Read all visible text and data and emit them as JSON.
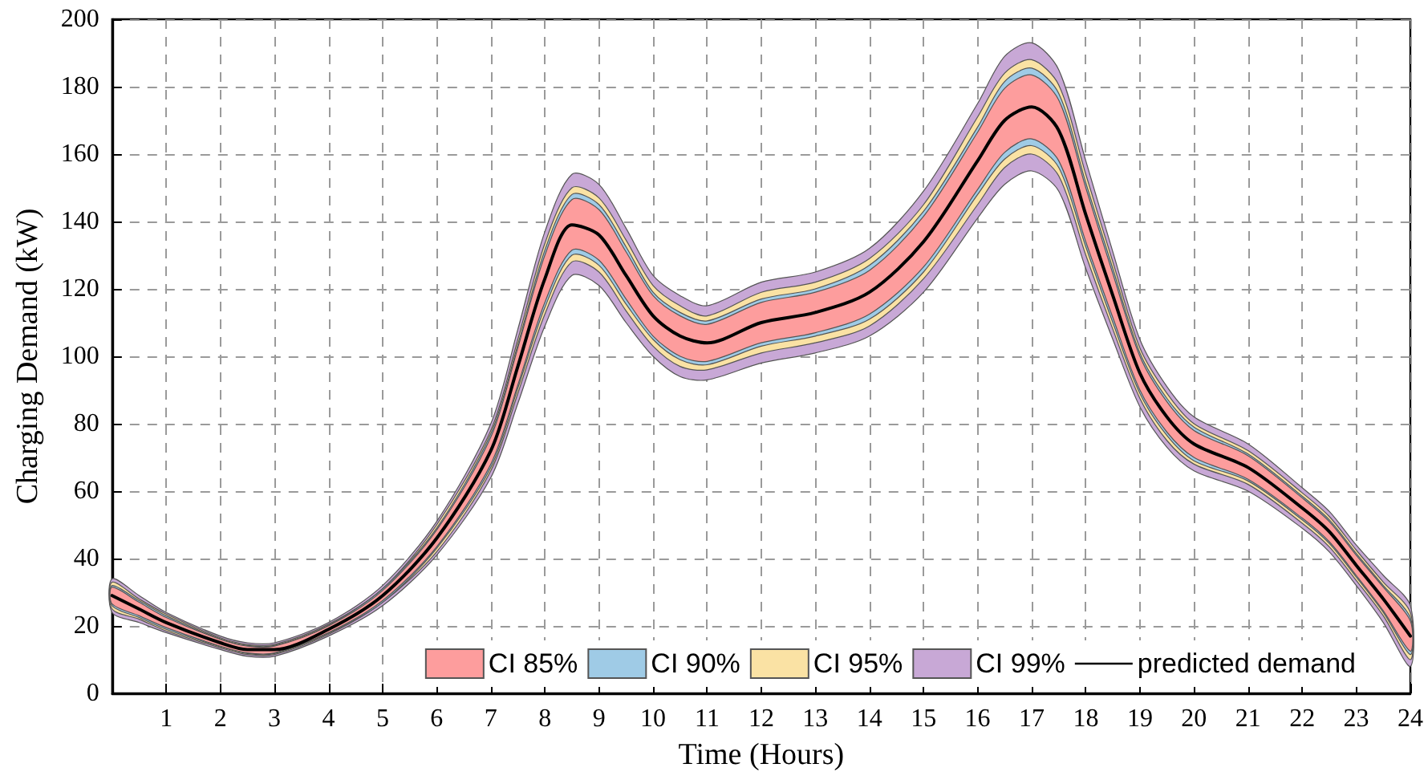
{
  "chart_data": {
    "type": "line",
    "xlabel": "Time (Hours)",
    "ylabel": "Charging Demand (kW)",
    "x": [
      0,
      0.5,
      1,
      2,
      2.5,
      3,
      4,
      5,
      6,
      7,
      7.5,
      8,
      8.5,
      9,
      9.5,
      10,
      10.5,
      11,
      12,
      13,
      14,
      15,
      16,
      16.5,
      17,
      17.5,
      18,
      18.5,
      19,
      19.5,
      20,
      21,
      22,
      22.5,
      23,
      23.5,
      24
    ],
    "xlim": [
      0,
      24
    ],
    "xticks": [
      1,
      2,
      3,
      4,
      5,
      6,
      7,
      8,
      9,
      10,
      11,
      12,
      13,
      14,
      15,
      16,
      17,
      18,
      19,
      20,
      21,
      22,
      23,
      24
    ],
    "ylim": [
      0,
      200
    ],
    "yticks": [
      0,
      20,
      40,
      60,
      80,
      100,
      120,
      140,
      160,
      180,
      200
    ],
    "grid": true,
    "legend": "bottom right",
    "marker": "none",
    "series": [
      {
        "name": "CI 85%",
        "color": "#fd9d9d",
        "values": [
          null,
          null,
          null,
          null,
          null,
          null,
          null,
          null,
          null,
          null,
          null,
          null,
          null,
          null,
          null,
          null,
          null,
          null,
          null,
          null,
          null,
          null,
          null,
          null,
          null,
          null,
          null,
          null,
          null,
          null,
          null,
          null,
          null,
          null,
          null,
          null,
          null
        ],
        "lower": [
          26.5,
          23,
          19.5,
          14,
          12,
          12,
          18,
          27.5,
          43.5,
          68,
          91.5,
          116,
          131.5,
          128.5,
          117,
          106,
          100,
          98.5,
          104,
          107,
          112.5,
          126.5,
          149.5,
          160.5,
          164.5,
          158,
          134,
          111.5,
          90,
          77.5,
          70,
          63.5,
          52,
          45,
          35,
          24.5,
          12.5
        ],
        "upper": [
          31.5,
          27,
          22.5,
          16,
          14,
          14,
          20,
          30.5,
          48.5,
          76,
          102.5,
          130,
          146.5,
          143.5,
          131,
          118,
          112,
          109.5,
          116,
          119,
          125.5,
          141.5,
          166.5,
          179.5,
          183.5,
          176,
          150,
          124.5,
          100,
          86.5,
          78,
          70.5,
          58,
          51,
          41,
          31.5,
          21.5
        ]
      },
      {
        "name": "CI 90%",
        "color": "#9fcbe6",
        "values": [
          null,
          null,
          null,
          null,
          null,
          null,
          null,
          null,
          null,
          null,
          null,
          null,
          null,
          null,
          null,
          null,
          null,
          null,
          null,
          null,
          null,
          null,
          null,
          null,
          null,
          null,
          null,
          null,
          null,
          null,
          null,
          null,
          null,
          null,
          null,
          null,
          null
        ],
        "lower": [
          26,
          22.5,
          19,
          13.8,
          11.8,
          11.8,
          17.8,
          27,
          43,
          67,
          90.5,
          114.5,
          130,
          127,
          115.5,
          105,
          99,
          97.5,
          103,
          106,
          111,
          125,
          148,
          158.5,
          162.5,
          156,
          132.5,
          110,
          89,
          76.5,
          69,
          63,
          51.5,
          44.5,
          34.5,
          24,
          11.5
        ],
        "upper": [
          32,
          27.5,
          23,
          16.2,
          14.2,
          14.2,
          20.2,
          31,
          49,
          77,
          103.5,
          131.5,
          148,
          145,
          132.5,
          119,
          113,
          110.5,
          117,
          120,
          127,
          143,
          168,
          181.5,
          185.5,
          178,
          151.5,
          126,
          101,
          87.5,
          79,
          71,
          58.5,
          51.5,
          41.5,
          32,
          22.5
        ]
      },
      {
        "name": "CI 95%",
        "color": "#fae2a4",
        "values": [
          null,
          null,
          null,
          null,
          null,
          null,
          null,
          null,
          null,
          null,
          null,
          null,
          null,
          null,
          null,
          null,
          null,
          null,
          null,
          null,
          null,
          null,
          null,
          null,
          null,
          null,
          null,
          null,
          null,
          null,
          null,
          null,
          null,
          null,
          null,
          null,
          null
        ],
        "lower": [
          25,
          22,
          18.5,
          13.5,
          11.5,
          11.5,
          17.5,
          27,
          42,
          66,
          89,
          112.5,
          128,
          125,
          113.5,
          103,
          97,
          96,
          101,
          104,
          109,
          123,
          145,
          156,
          160,
          153.5,
          130,
          108,
          87.5,
          75,
          68,
          62,
          50.5,
          43.5,
          33.5,
          23,
          10
        ],
        "upper": [
          33,
          28,
          23.5,
          16.5,
          14.5,
          14.5,
          20.5,
          31,
          50,
          78,
          105,
          133.5,
          150,
          147,
          134.5,
          121,
          115,
          112,
          119,
          122,
          129,
          145,
          171,
          184,
          188,
          180.5,
          154,
          128,
          102.5,
          89,
          80,
          72,
          59.5,
          52.5,
          42.5,
          33,
          24
        ]
      },
      {
        "name": "CI 99%",
        "color": "#c8a8d6",
        "values": [
          null,
          null,
          null,
          null,
          null,
          null,
          null,
          null,
          null,
          null,
          null,
          null,
          null,
          null,
          null,
          null,
          null,
          null,
          null,
          null,
          null,
          null,
          null,
          null,
          null,
          null,
          null,
          null,
          null,
          null,
          null,
          null,
          null,
          null,
          null,
          null,
          null
        ],
        "lower": [
          24,
          21,
          18,
          13,
          11,
          11,
          17,
          26,
          41,
          64,
          86,
          109,
          124,
          121,
          110,
          100,
          94,
          93,
          98,
          101,
          106,
          119,
          141,
          151,
          155,
          149,
          126,
          105,
          85,
          73,
          66,
          60,
          49,
          42,
          32,
          21,
          8
        ],
        "upper": [
          34,
          29,
          24,
          17,
          15,
          15,
          21,
          32,
          51,
          80,
          108,
          137,
          154,
          151,
          138,
          124,
          118,
          115,
          122,
          125,
          132,
          149,
          175,
          189,
          193,
          185,
          158,
          131,
          105,
          91,
          82,
          74,
          61,
          54,
          44,
          35,
          26
        ]
      },
      {
        "name": "predicted demand",
        "color": "#000000",
        "values": [
          29,
          25,
          21,
          15,
          13,
          13,
          19,
          29,
          46,
          72,
          97,
          123,
          139,
          136,
          124,
          112,
          106,
          104,
          110,
          113,
          119,
          134,
          158,
          170,
          174,
          167,
          142,
          118,
          95,
          82,
          74,
          67,
          55,
          48,
          38,
          28,
          17
        ]
      }
    ]
  }
}
